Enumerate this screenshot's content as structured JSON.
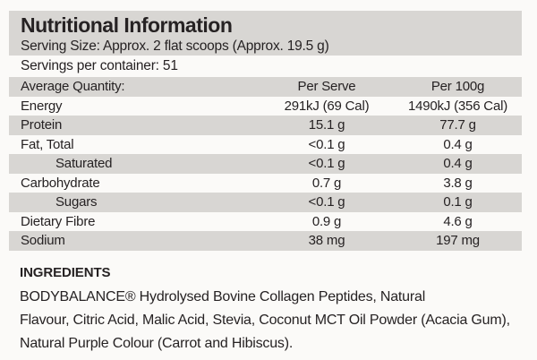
{
  "label": {
    "title": "Nutritional Information",
    "serving_size": "Serving Size: Approx. 2 flat scoops (Approx. 19.5 g)",
    "servings_per_container": "Servings per container: 51",
    "table": {
      "header": {
        "col_name": "Average Quantity:",
        "col_serve": "Per Serve",
        "col_100g": "Per 100g"
      },
      "rows": [
        {
          "name": "Energy",
          "per_serve": "291kJ (69 Cal)",
          "per_100g": "1490kJ (356 Cal)",
          "indent": false,
          "shaded": false
        },
        {
          "name": "Protein",
          "per_serve": "15.1 g",
          "per_100g": "77.7 g",
          "indent": false,
          "shaded": true
        },
        {
          "name": "Fat, Total",
          "per_serve": "<0.1 g",
          "per_100g": "0.4 g",
          "indent": false,
          "shaded": false
        },
        {
          "name": "Saturated",
          "per_serve": "<0.1 g",
          "per_100g": "0.4 g",
          "indent": true,
          "shaded": true
        },
        {
          "name": "Carbohydrate",
          "per_serve": "0.7 g",
          "per_100g": "3.8 g",
          "indent": false,
          "shaded": false
        },
        {
          "name": "Sugars",
          "per_serve": "<0.1 g",
          "per_100g": "0.1 g",
          "indent": true,
          "shaded": true
        },
        {
          "name": "Dietary Fibre",
          "per_serve": "0.9 g",
          "per_100g": "4.6 g",
          "indent": false,
          "shaded": false
        },
        {
          "name": "Sodium",
          "per_serve": "38 mg",
          "per_100g": "197 mg",
          "indent": false,
          "shaded": true
        }
      ]
    },
    "ingredients": {
      "heading": "INGREDIENTS",
      "lines": [
        "BODYBALANCE® Hydrolysed Bovine Collagen Peptides, Natural",
        "Flavour, Citric Acid, Malic Acid, Stevia, Coconut MCT Oil Powder (Acacia Gum),",
        "Natural Purple Colour (Carrot and Hibiscus)."
      ]
    },
    "colors": {
      "row_shade": "#d8d6d3",
      "text": "#262223",
      "background": "#fbfaf8"
    }
  }
}
